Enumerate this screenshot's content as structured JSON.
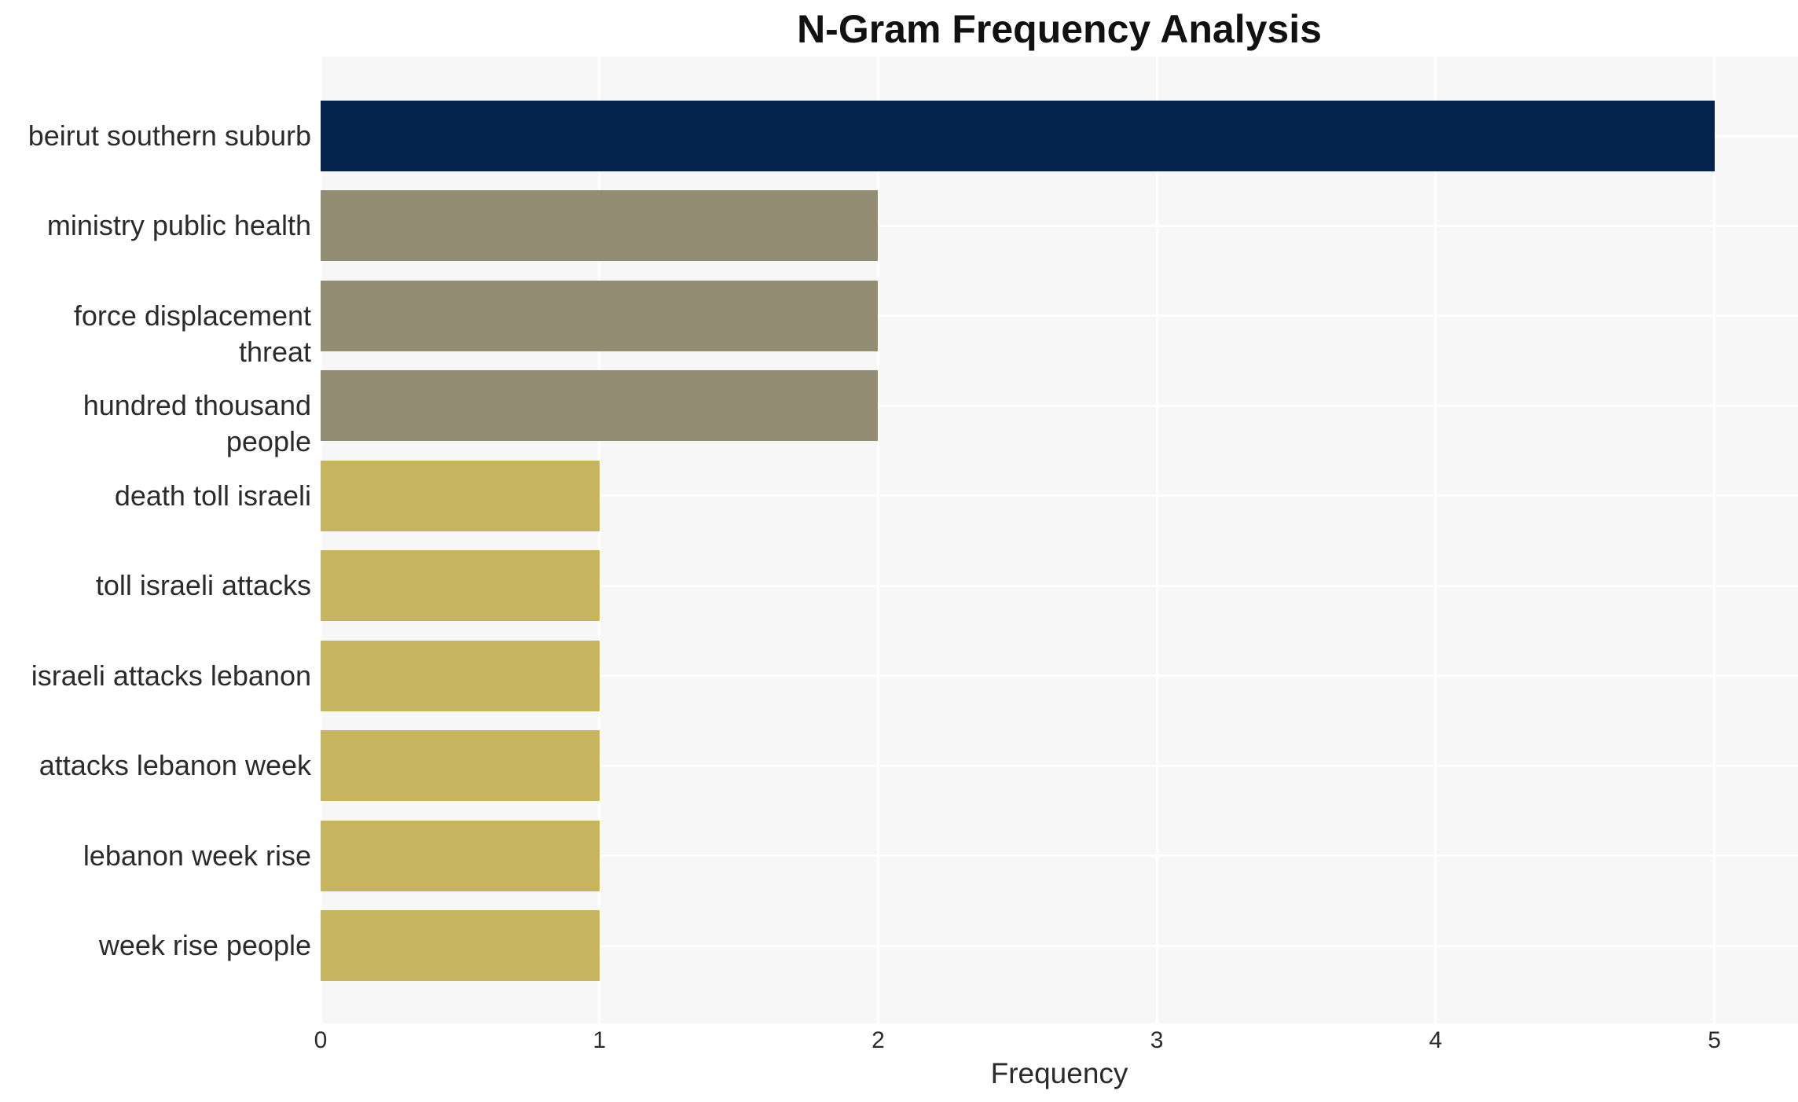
{
  "chart_data": {
    "type": "bar",
    "orientation": "horizontal",
    "title": "N-Gram Frequency Analysis",
    "xlabel": "Frequency",
    "ylabel": "",
    "categories": [
      "beirut southern suburb",
      "ministry public health",
      "force displacement threat",
      "hundred thousand people",
      "death toll israeli",
      "toll israeli attacks",
      "israeli attacks lebanon",
      "attacks lebanon week",
      "lebanon week rise",
      "week rise people"
    ],
    "values": [
      5,
      2,
      2,
      2,
      1,
      1,
      1,
      1,
      1,
      1
    ],
    "bar_colors": [
      "#03234D",
      "#938D73",
      "#938D73",
      "#938D73",
      "#C6B45F",
      "#C6B45F",
      "#C6B45F",
      "#C6B45F",
      "#C6B45F",
      "#C6B45F"
    ],
    "xticks": [
      "0",
      "1",
      "2",
      "3",
      "4",
      "5"
    ],
    "xlim": [
      0,
      5.3
    ],
    "grid": true,
    "legend": false,
    "colors": {
      "plot_background": "#F7F7F7",
      "gridline": "#FFFFFF",
      "text": "#2B2B2B",
      "title_text": "#111111"
    }
  }
}
